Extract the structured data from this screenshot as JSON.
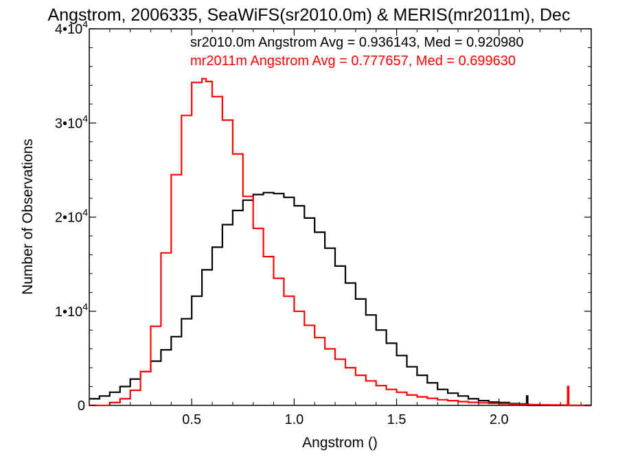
{
  "chart_data": {
    "type": "line",
    "title": "Angstrom, 2006335, SeaWiFS(sr2010.0m) & MERIS(mr2011m), Dec",
    "xlabel": "Angstrom ()",
    "ylabel": "Number of Observations",
    "xlim": [
      0.0,
      2.45
    ],
    "ylim": [
      0,
      40000
    ],
    "x_ticks": [
      {
        "value": 0.5,
        "label": "0.5"
      },
      {
        "value": 1.0,
        "label": "1.0"
      },
      {
        "value": 1.5,
        "label": "1.5"
      },
      {
        "value": 2.0,
        "label": "2.0"
      }
    ],
    "y_ticks": [
      {
        "value": 0,
        "base": "0",
        "exp": ""
      },
      {
        "value": 10000,
        "base": "1•10",
        "exp": "4"
      },
      {
        "value": 20000,
        "base": "2•10",
        "exp": "4"
      },
      {
        "value": 30000,
        "base": "3•10",
        "exp": "4"
      },
      {
        "value": 40000,
        "base": "4•10",
        "exp": "4"
      }
    ],
    "legend": [
      {
        "text": "sr2010.0m Angstrom Avg = 0.936143, Med = 0.920980",
        "color": "#000000"
      },
      {
        "text": "mr2011m Angstrom Avg = 0.777657, Med = 0.699630",
        "color": "#ff0000"
      }
    ],
    "series": [
      {
        "color": "#000000",
        "x": [
          0.0,
          0.05,
          0.1,
          0.15,
          0.2,
          0.25,
          0.3,
          0.35,
          0.4,
          0.45,
          0.5,
          0.55,
          0.6,
          0.65,
          0.7,
          0.75,
          0.8,
          0.85,
          0.9,
          0.95,
          1.0,
          1.05,
          1.1,
          1.15,
          1.2,
          1.25,
          1.3,
          1.35,
          1.4,
          1.45,
          1.5,
          1.55,
          1.6,
          1.65,
          1.7,
          1.75,
          1.8,
          1.85,
          1.9,
          1.95,
          2.0,
          2.05,
          2.1,
          2.13,
          2.135,
          2.14,
          2.15,
          2.16,
          2.2,
          2.25,
          2.3,
          2.32,
          2.33,
          2.34,
          2.4,
          2.45
        ],
        "y": [
          700,
          1000,
          1400,
          2000,
          2800,
          3600,
          4700,
          5900,
          7300,
          9200,
          11600,
          14400,
          16800,
          19200,
          20700,
          21800,
          22400,
          22600,
          22500,
          22100,
          21200,
          19900,
          18400,
          16700,
          14800,
          13000,
          11300,
          9600,
          8000,
          6600,
          5300,
          4100,
          3200,
          2400,
          1700,
          1300,
          1000,
          700,
          500,
          350,
          300,
          200,
          150,
          120,
          1000,
          0,
          0,
          0,
          0,
          0,
          0,
          0,
          0,
          0,
          0,
          0
        ]
      },
      {
        "color": "#ff0000",
        "x": [
          0.0,
          0.05,
          0.1,
          0.15,
          0.2,
          0.25,
          0.3,
          0.35,
          0.4,
          0.45,
          0.5,
          0.55,
          0.57,
          0.6,
          0.65,
          0.7,
          0.75,
          0.8,
          0.85,
          0.9,
          0.95,
          1.0,
          1.05,
          1.1,
          1.15,
          1.2,
          1.25,
          1.3,
          1.35,
          1.4,
          1.45,
          1.5,
          1.55,
          1.6,
          1.65,
          1.7,
          1.75,
          1.8,
          1.85,
          1.9,
          1.95,
          2.0,
          2.05,
          2.1,
          2.15,
          2.2,
          2.25,
          2.3,
          2.32,
          2.33,
          2.335,
          2.34,
          2.4,
          2.45
        ],
        "y": [
          0,
          0,
          300,
          700,
          1600,
          3600,
          8400,
          16200,
          24500,
          30800,
          34300,
          34700,
          34400,
          32800,
          30300,
          26700,
          22200,
          18800,
          15800,
          13500,
          11600,
          10000,
          8500,
          7200,
          6000,
          4900,
          4000,
          3200,
          2600,
          2100,
          1700,
          1400,
          1100,
          900,
          750,
          600,
          500,
          400,
          320,
          270,
          220,
          180,
          140,
          110,
          80,
          60,
          50,
          40,
          30,
          30,
          2000,
          0,
          0,
          0
        ]
      }
    ]
  }
}
